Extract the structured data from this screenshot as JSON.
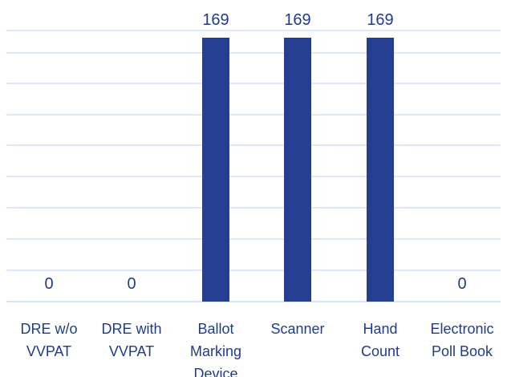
{
  "chart_data": {
    "type": "bar",
    "categories": [
      "DRE w/o VVPAT",
      "DRE with VVPAT",
      "Ballot Marking Device",
      "Scanner",
      "Hand Count",
      "Electronic Poll Book"
    ],
    "values": [
      0,
      0,
      169,
      169,
      169,
      0
    ],
    "ylim": [
      0,
      180
    ],
    "grid": true,
    "legend": "none",
    "bar_color": "#243f8f",
    "label_color": "#1f3c88",
    "grid_color": "#bfd0ea"
  }
}
